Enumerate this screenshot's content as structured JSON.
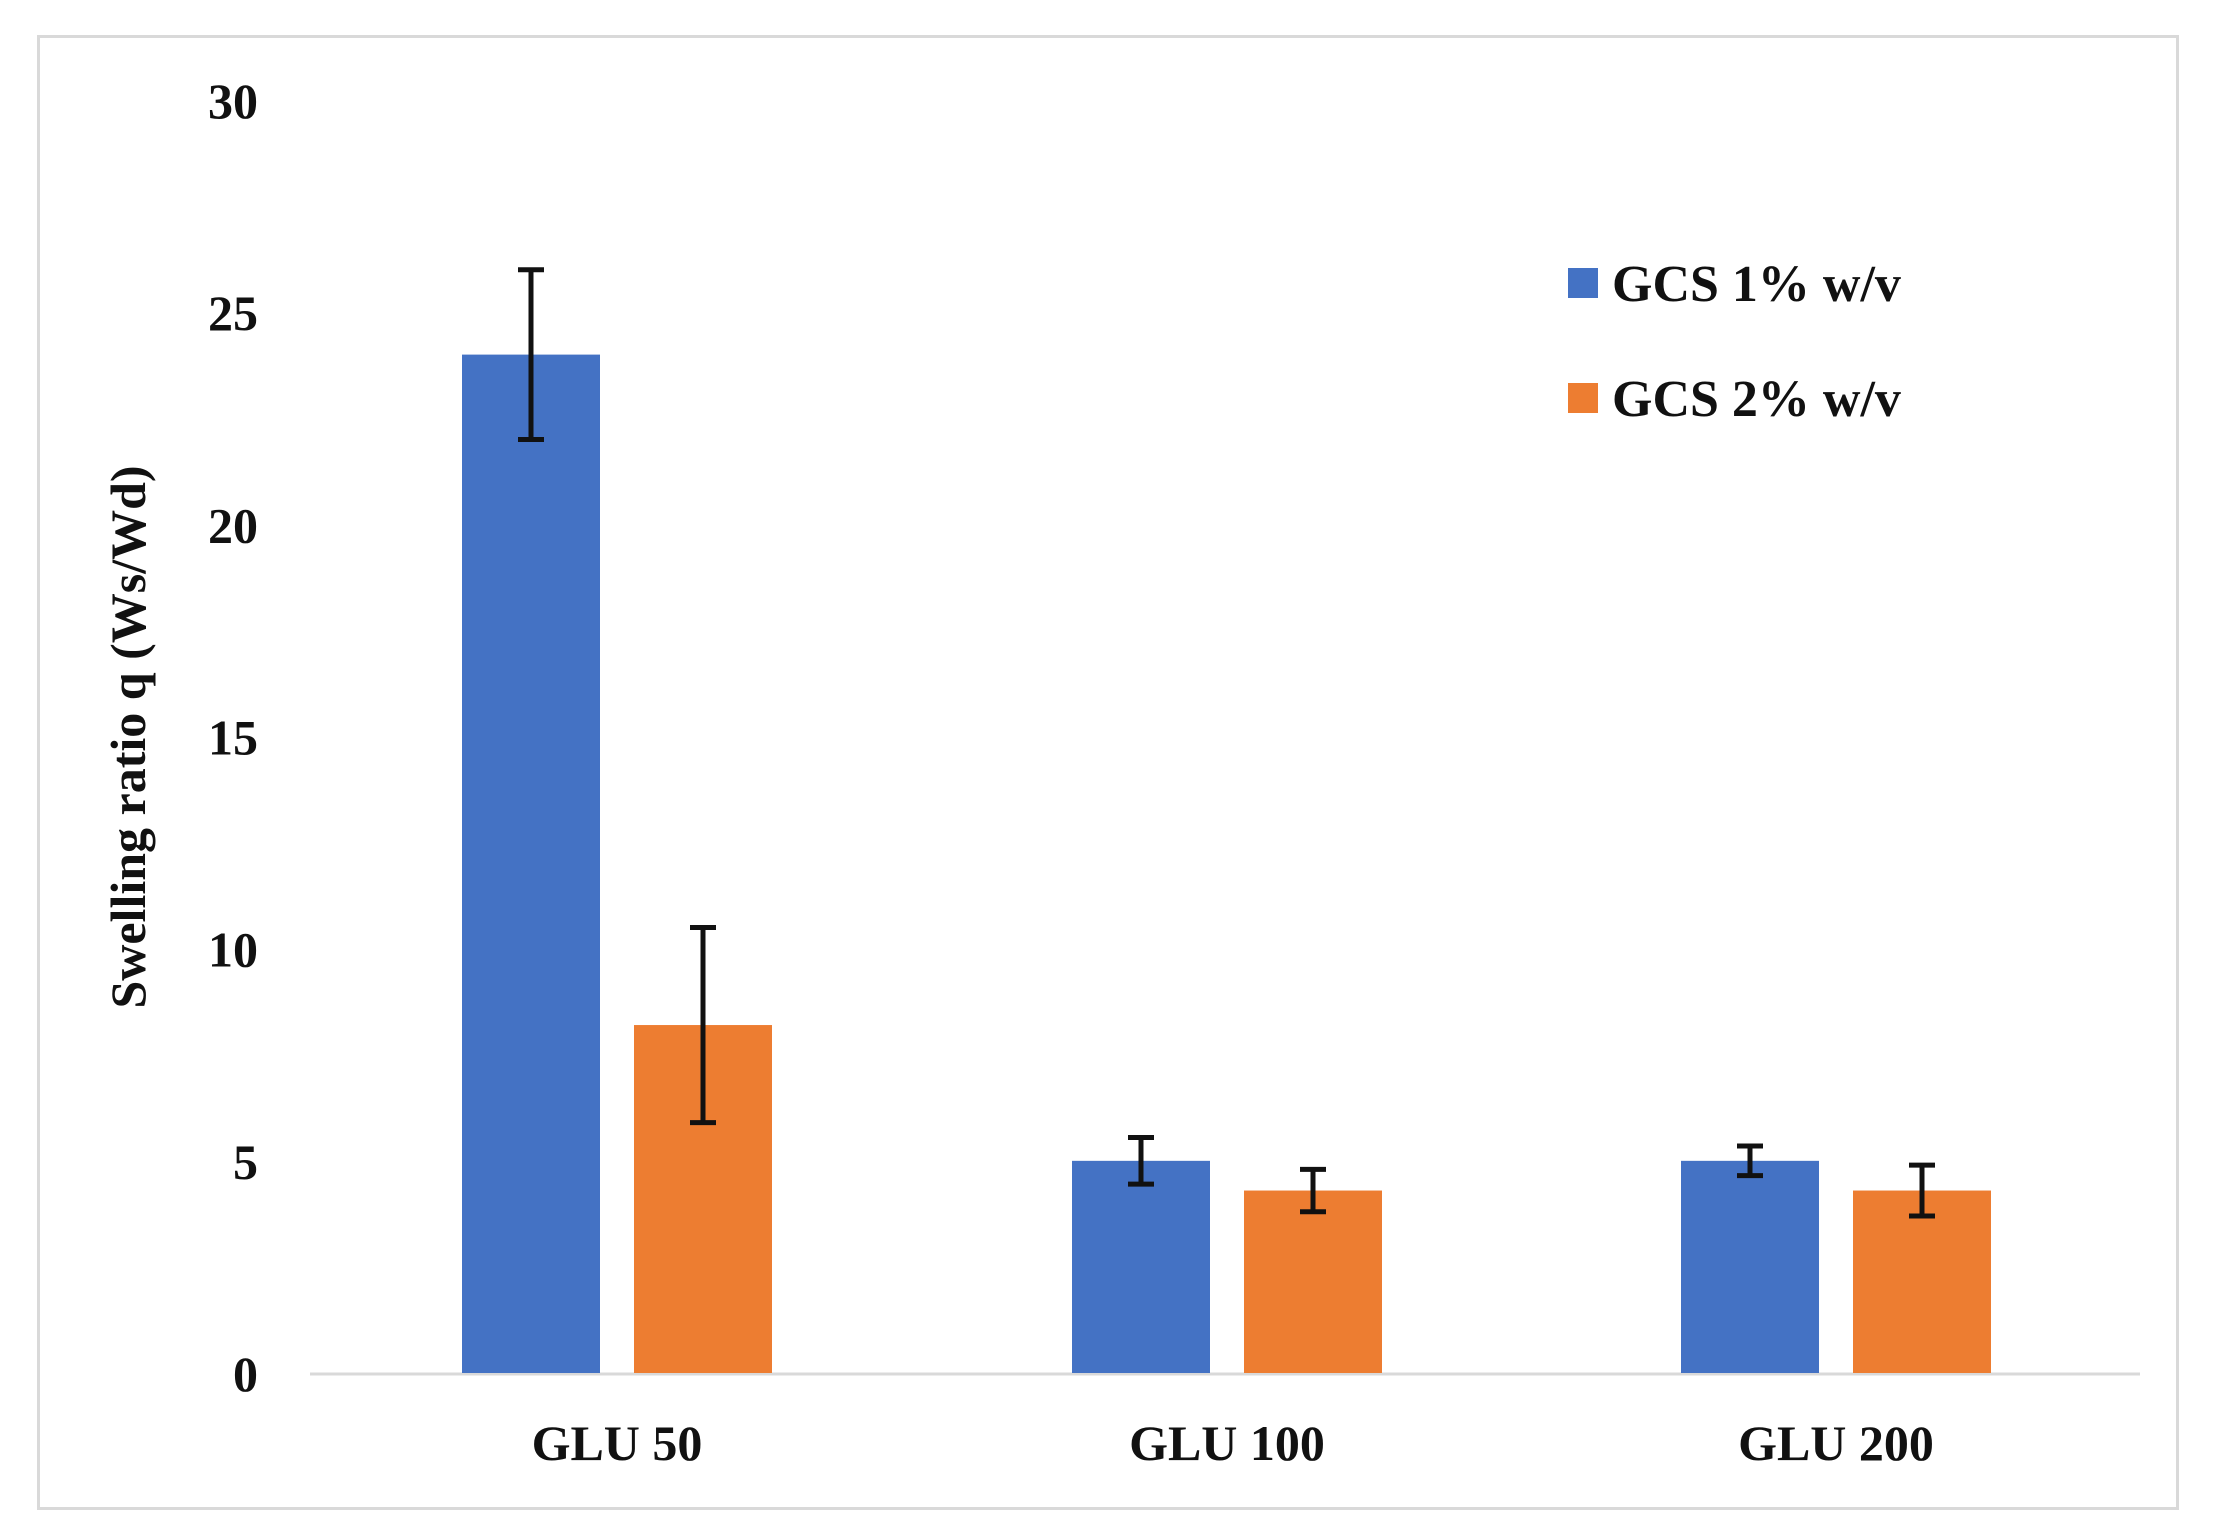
{
  "chart_data": {
    "type": "bar",
    "title": "",
    "xlabel": "",
    "ylabel": "Swelling ratio q (Ws/Wd)",
    "ylim": [
      0,
      30
    ],
    "yticks": [
      "0",
      "5",
      "10",
      "15",
      "20",
      "25",
      "30"
    ],
    "categories": [
      "GLU 50",
      "GLU 100",
      "GLU 200"
    ],
    "series": [
      {
        "name": "GCS 1% w/v",
        "color": "#4472c4",
        "values": [
          24.0,
          5.0,
          5.0
        ],
        "errors": [
          2.0,
          0.55,
          0.35
        ]
      },
      {
        "name": "GCS 2% w/v",
        "color": "#ed7d31",
        "values": [
          8.2,
          4.3,
          4.3
        ],
        "errors": [
          2.3,
          0.5,
          0.6
        ]
      }
    ],
    "legend_position": "top-right",
    "grid": false
  }
}
